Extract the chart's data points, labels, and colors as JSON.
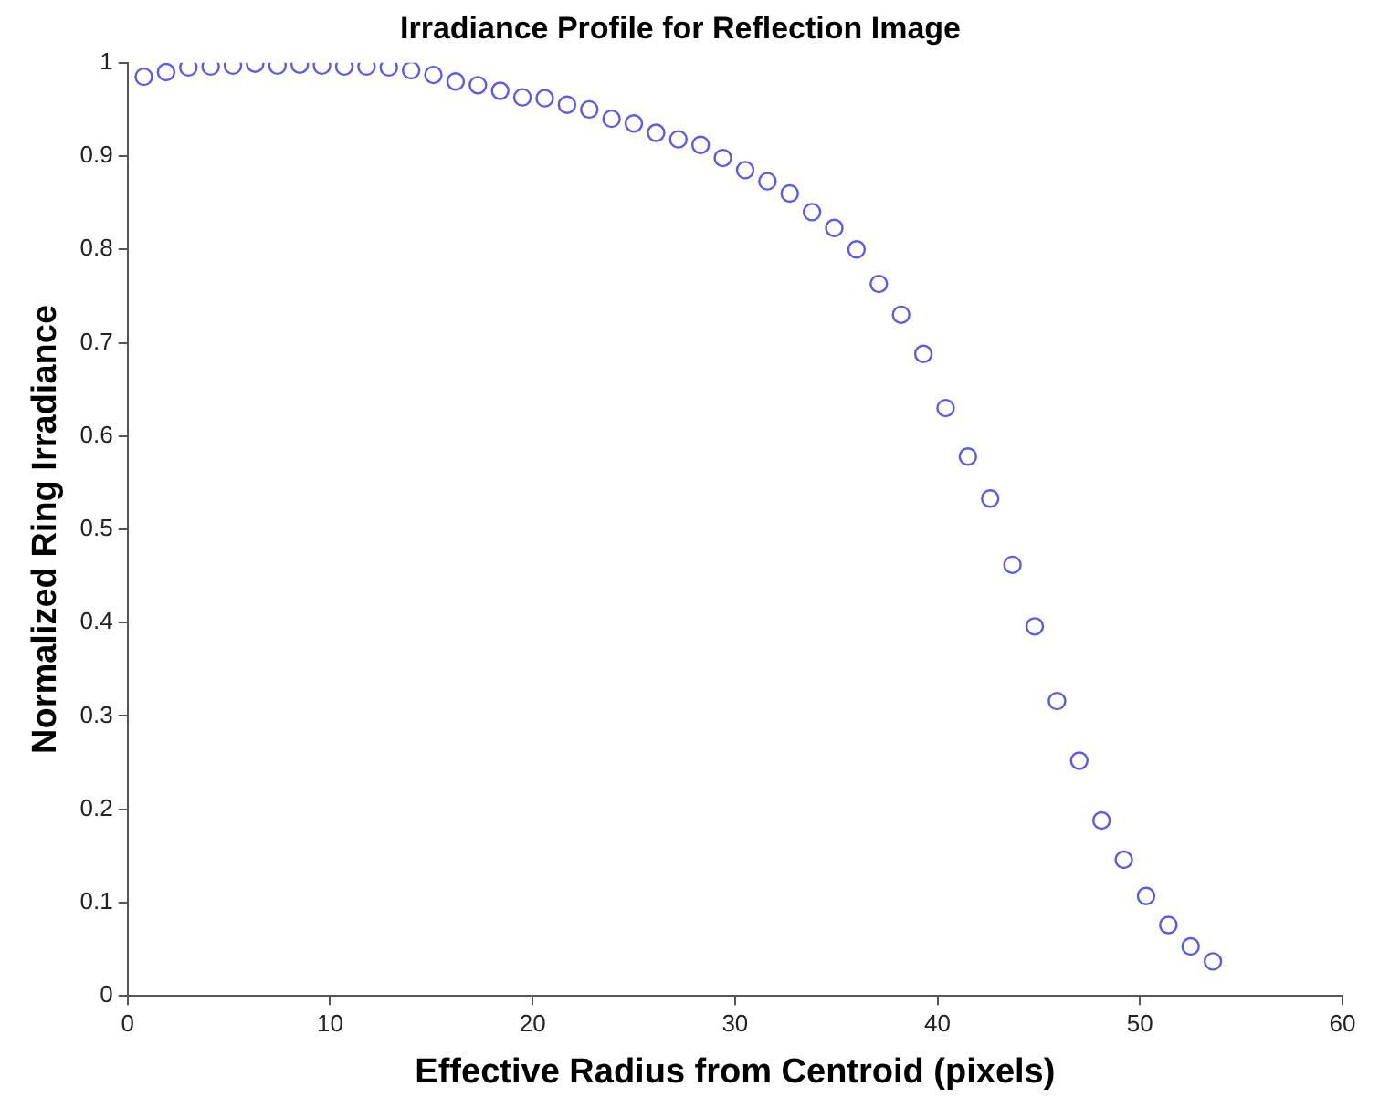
{
  "chart_data": {
    "type": "scatter",
    "title": "Irradiance Profile for Reflection Image",
    "xlabel": "Effective Radius from Centroid (pixels)",
    "ylabel": "Normalized Ring Irradiance",
    "x": [
      0.8,
      1.9,
      3.0,
      4.1,
      5.2,
      6.3,
      7.4,
      8.5,
      9.6,
      10.7,
      11.8,
      12.9,
      14.0,
      15.1,
      16.2,
      17.3,
      18.4,
      19.5,
      20.6,
      21.7,
      22.8,
      23.9,
      25.0,
      26.1,
      27.2,
      28.3,
      29.4,
      30.5,
      31.6,
      32.7,
      33.8,
      34.9,
      36.0,
      37.1,
      38.2,
      39.3,
      40.4,
      41.5,
      42.6,
      43.7,
      44.8,
      45.9,
      47.0,
      48.1,
      49.2,
      50.3,
      51.4,
      52.5,
      53.6
    ],
    "series": [
      {
        "color": "#5a5ae6",
        "values": [
          0.985,
          0.99,
          0.995,
          0.996,
          0.997,
          0.999,
          0.997,
          0.998,
          0.997,
          0.996,
          0.996,
          0.995,
          0.992,
          0.987,
          0.98,
          0.976,
          0.97,
          0.963,
          0.962,
          0.955,
          0.95,
          0.94,
          0.935,
          0.925,
          0.918,
          0.912,
          0.898,
          0.885,
          0.873,
          0.86,
          0.84,
          0.823,
          0.8,
          0.763,
          0.73,
          0.688,
          0.63,
          0.578,
          0.533,
          0.462,
          0.396,
          0.316,
          0.252,
          0.188,
          0.146,
          0.107,
          0.076,
          0.053,
          0.037
        ]
      }
    ],
    "xlim": [
      0,
      60
    ],
    "xticks": [
      0,
      10,
      20,
      30,
      40,
      50,
      60
    ],
    "ylim": [
      0,
      1
    ],
    "yticks": [
      0,
      0.1,
      0.2,
      0.3,
      0.4,
      0.5,
      0.6,
      0.7,
      0.8,
      0.9,
      1
    ],
    "grid": false,
    "legend": false,
    "marker": "circle"
  }
}
